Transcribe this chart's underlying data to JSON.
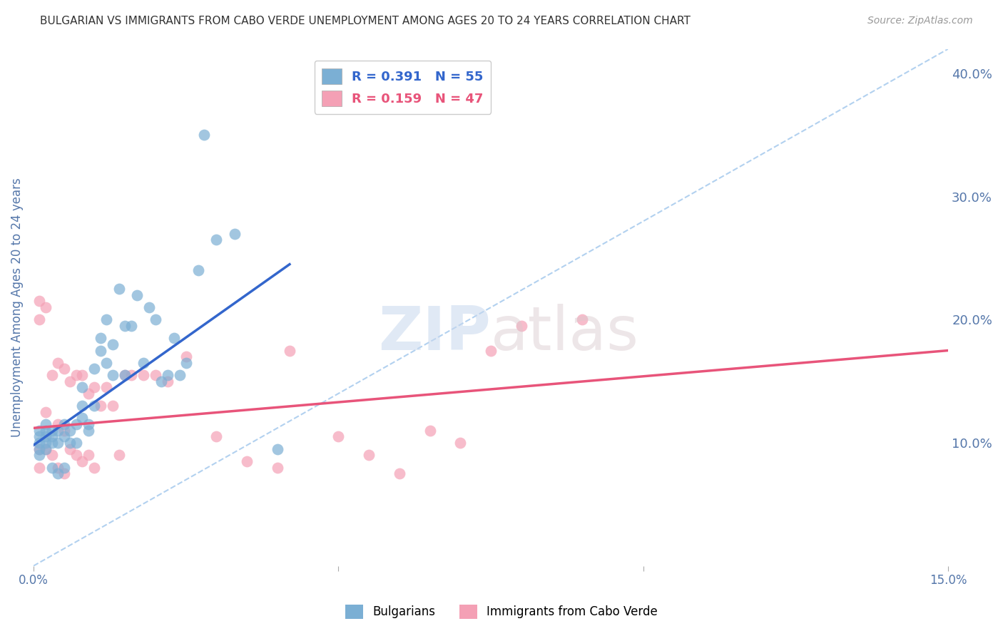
{
  "title": "BULGARIAN VS IMMIGRANTS FROM CABO VERDE UNEMPLOYMENT AMONG AGES 20 TO 24 YEARS CORRELATION CHART",
  "source": "Source: ZipAtlas.com",
  "ylabel": "Unemployment Among Ages 20 to 24 years",
  "xlim": [
    0.0,
    0.15
  ],
  "ylim": [
    0.0,
    0.42
  ],
  "right_yticks": [
    0.1,
    0.2,
    0.3,
    0.4
  ],
  "right_yticklabels": [
    "10.0%",
    "20.0%",
    "30.0%",
    "40.0%"
  ],
  "xticks": [
    0.0,
    0.05,
    0.1,
    0.15
  ],
  "xticklabels": [
    "0.0%",
    "",
    "",
    "15.0%"
  ],
  "bg_color": "#ffffff",
  "grid_color": "#cccccc",
  "blue_color": "#7bafd4",
  "pink_color": "#f4a0b5",
  "blue_line_color": "#3366cc",
  "pink_line_color": "#e8547a",
  "dashed_line_color": "#aaccee",
  "title_color": "#333333",
  "axis_label_color": "#5577aa",
  "R_blue": 0.391,
  "N_blue": 55,
  "R_pink": 0.159,
  "N_pink": 47,
  "blue_scatter_x": [
    0.001,
    0.001,
    0.001,
    0.001,
    0.001,
    0.002,
    0.002,
    0.002,
    0.002,
    0.002,
    0.003,
    0.003,
    0.003,
    0.003,
    0.004,
    0.004,
    0.004,
    0.005,
    0.005,
    0.005,
    0.006,
    0.006,
    0.007,
    0.007,
    0.008,
    0.008,
    0.008,
    0.009,
    0.009,
    0.01,
    0.01,
    0.011,
    0.011,
    0.012,
    0.012,
    0.013,
    0.013,
    0.014,
    0.015,
    0.015,
    0.016,
    0.017,
    0.018,
    0.019,
    0.02,
    0.021,
    0.022,
    0.023,
    0.024,
    0.025,
    0.027,
    0.028,
    0.03,
    0.033,
    0.04
  ],
  "blue_scatter_y": [
    0.11,
    0.105,
    0.1,
    0.095,
    0.09,
    0.115,
    0.11,
    0.105,
    0.1,
    0.095,
    0.11,
    0.105,
    0.1,
    0.08,
    0.11,
    0.1,
    0.075,
    0.115,
    0.105,
    0.08,
    0.11,
    0.1,
    0.115,
    0.1,
    0.145,
    0.13,
    0.12,
    0.115,
    0.11,
    0.16,
    0.13,
    0.185,
    0.175,
    0.2,
    0.165,
    0.18,
    0.155,
    0.225,
    0.195,
    0.155,
    0.195,
    0.22,
    0.165,
    0.21,
    0.2,
    0.15,
    0.155,
    0.185,
    0.155,
    0.165,
    0.24,
    0.35,
    0.265,
    0.27,
    0.095
  ],
  "pink_scatter_x": [
    0.001,
    0.001,
    0.001,
    0.001,
    0.002,
    0.002,
    0.002,
    0.003,
    0.003,
    0.004,
    0.004,
    0.004,
    0.005,
    0.005,
    0.005,
    0.006,
    0.006,
    0.007,
    0.007,
    0.008,
    0.008,
    0.009,
    0.009,
    0.01,
    0.01,
    0.011,
    0.012,
    0.013,
    0.014,
    0.015,
    0.016,
    0.018,
    0.02,
    0.022,
    0.025,
    0.03,
    0.035,
    0.04,
    0.042,
    0.05,
    0.055,
    0.06,
    0.065,
    0.07,
    0.075,
    0.08,
    0.09
  ],
  "pink_scatter_y": [
    0.215,
    0.2,
    0.095,
    0.08,
    0.21,
    0.125,
    0.095,
    0.155,
    0.09,
    0.165,
    0.115,
    0.08,
    0.16,
    0.11,
    0.075,
    0.15,
    0.095,
    0.155,
    0.09,
    0.155,
    0.085,
    0.14,
    0.09,
    0.145,
    0.08,
    0.13,
    0.145,
    0.13,
    0.09,
    0.155,
    0.155,
    0.155,
    0.155,
    0.15,
    0.17,
    0.105,
    0.085,
    0.08,
    0.175,
    0.105,
    0.09,
    0.075,
    0.11,
    0.1,
    0.175,
    0.195,
    0.2
  ],
  "blue_trend_x": [
    0.0,
    0.042
  ],
  "blue_trend_y": [
    0.098,
    0.245
  ],
  "pink_trend_x": [
    0.0,
    0.15
  ],
  "pink_trend_y": [
    0.112,
    0.175
  ],
  "diag_line_x": [
    0.0,
    0.15
  ],
  "diag_line_y": [
    0.0,
    0.42
  ]
}
